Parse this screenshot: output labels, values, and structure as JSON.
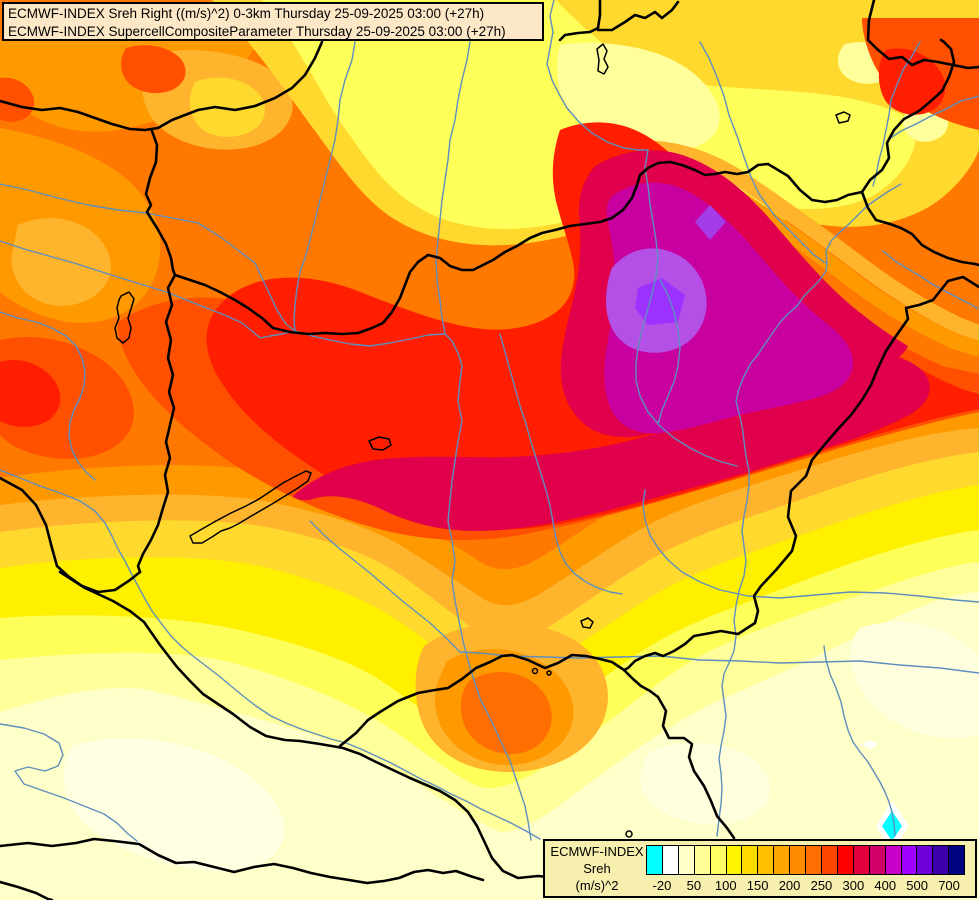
{
  "title_box": {
    "line1": "ECMWF-INDEX Sreh Right ((m/s)^2) 0-3km Thursday 25-09-2025 03:00 (+27h)",
    "line2": "ECMWF-INDEX SupercellCompositeParameter Thursday 25-09-2025 03:00 (+27h)"
  },
  "legend": {
    "label_line1": "ECMWF-INDEX",
    "label_line2": "Sreh",
    "label_line3": "(m/s)^2",
    "tick_labels": [
      "-20",
      "50",
      "100",
      "150",
      "200",
      "250",
      "300",
      "400",
      "500",
      "700"
    ],
    "colors": [
      "#00FFFF",
      "#FFFFFF",
      "#FFFFC8",
      "#FFFF96",
      "#FFFF64",
      "#FFF500",
      "#FFDC00",
      "#FFBE00",
      "#FFA500",
      "#FF8C00",
      "#FF6E00",
      "#FF4600",
      "#FF0000",
      "#E1003C",
      "#D20069",
      "#C800C8",
      "#A000FF",
      "#6E00DC",
      "#3C00AA",
      "#000082"
    ]
  },
  "palette": {
    "cream": "#FFFFC9",
    "white_patch": "#FFFFE2",
    "pale_patch": "#FFFFDE",
    "light_yellow": "#FFFF9B",
    "yellow": "#FFFF5A",
    "bright_yellow": "#FFF000",
    "gold": "#FFD92E",
    "amber": "#FFB42E",
    "orange": "#FF9900",
    "dark_orange": "#FF7800",
    "red_orange": "#FF5000",
    "blob_core_orange": "#FF6E00",
    "red": "#FF1E00",
    "crimson": "#E1004B",
    "magenta": "#C800A0",
    "light_purple": "#B450E6",
    "violet": "#9B32FF",
    "violet_diamond": "#A43CE8",
    "cyan": "#00FFFF",
    "white": "#FFFFFF",
    "border": "#000000",
    "river": "#5E8FBE",
    "lake_outline": "#000000"
  }
}
